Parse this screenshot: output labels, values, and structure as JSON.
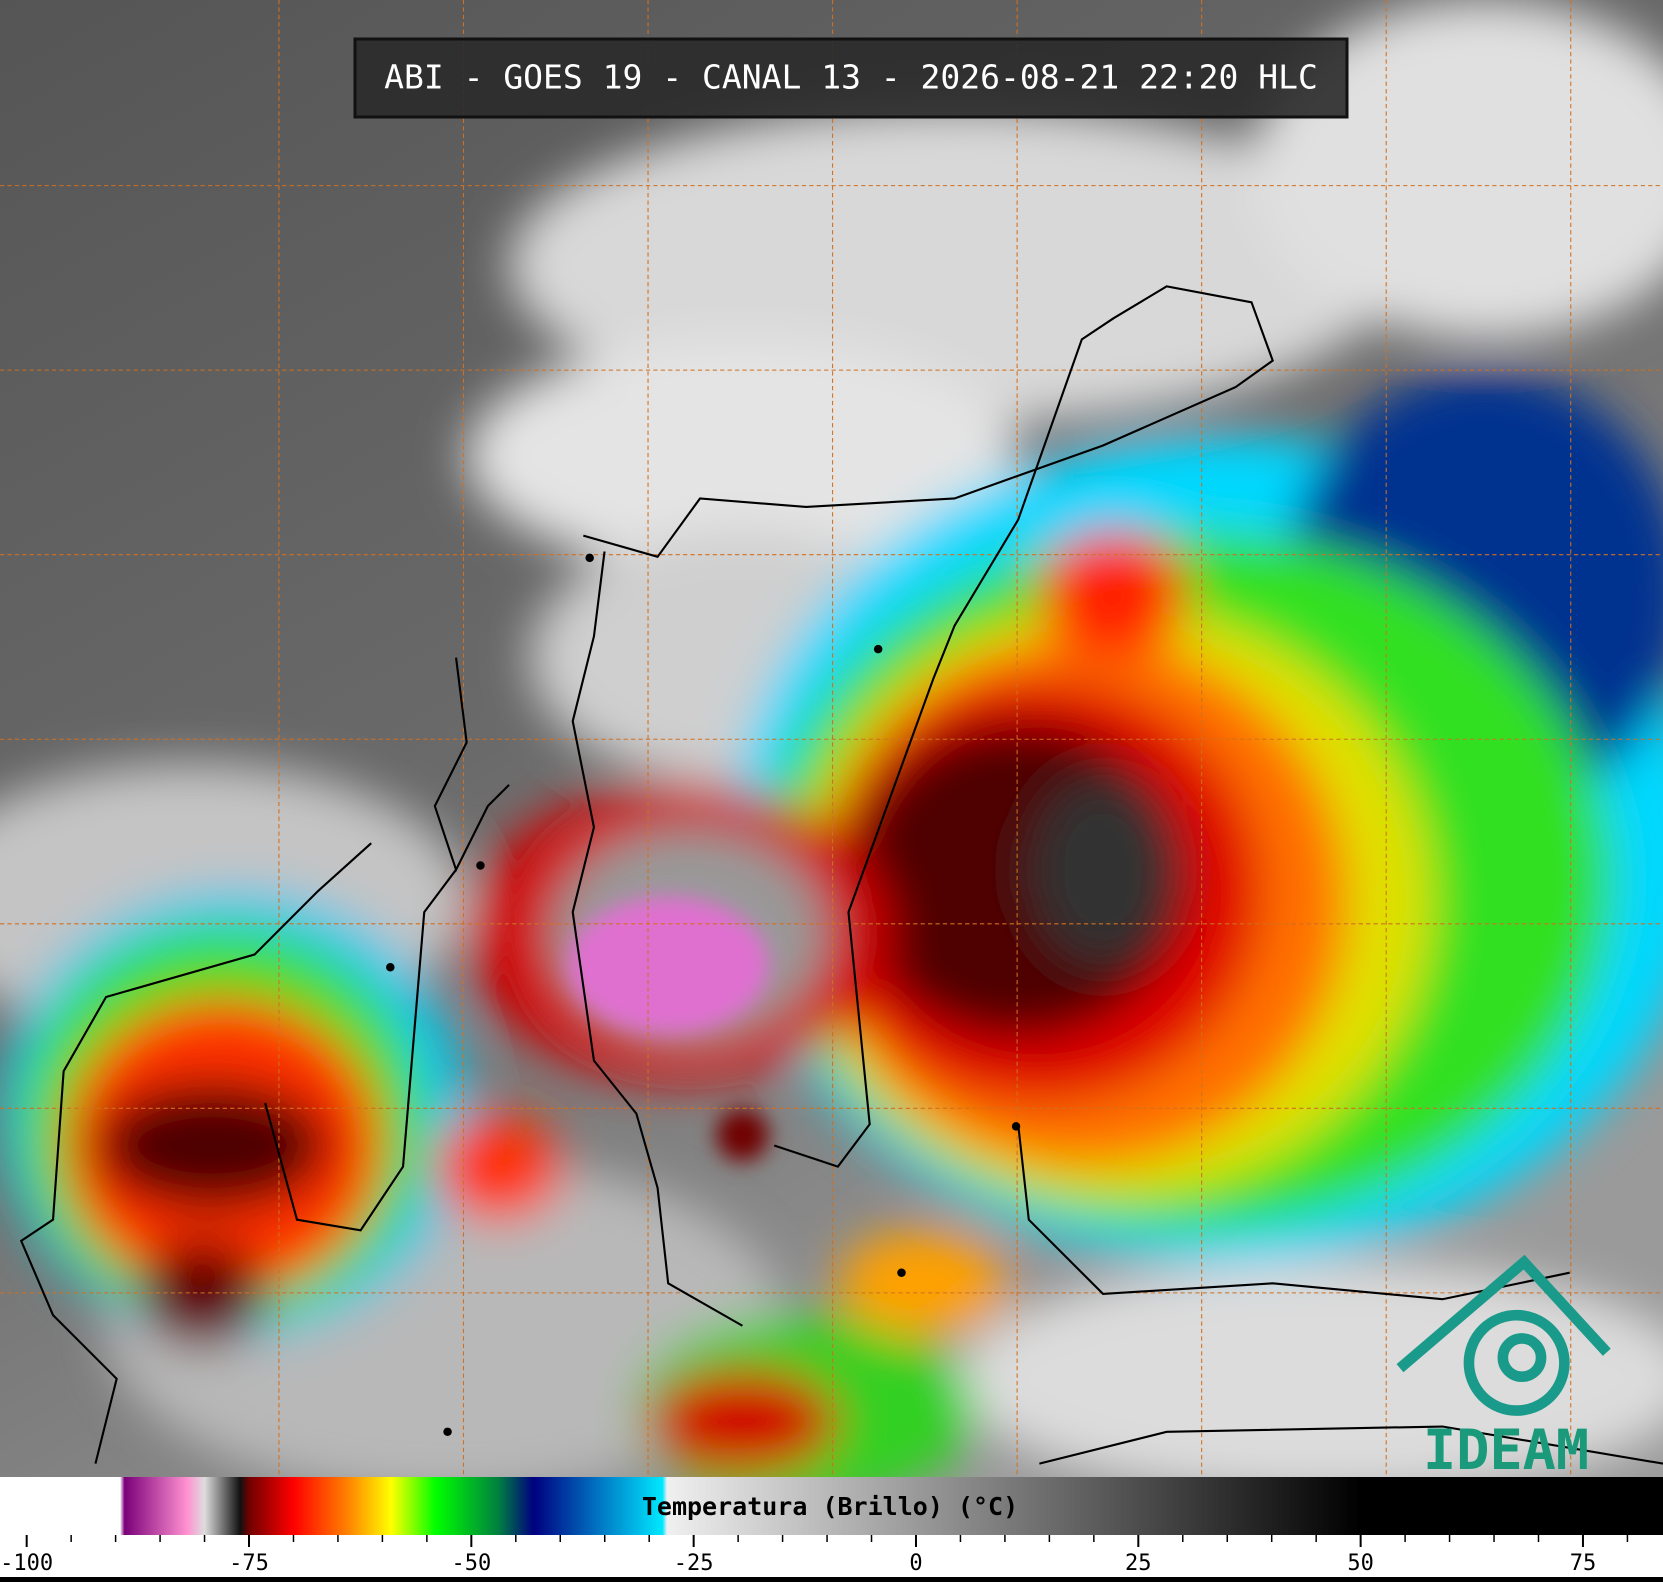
{
  "header": {
    "title": "ABI - GOES 19 - CANAL 13 - 2026-08-21 22:20 HLC"
  },
  "logo": {
    "text": "IDEAM"
  },
  "colorbar": {
    "label": "Temperatura (Brillo) (°C)",
    "lim": [
      -103,
      84
    ],
    "ticks": [
      -100,
      -75,
      -50,
      -25,
      0,
      25,
      50,
      75
    ],
    "minor_ticks": [
      -95,
      -90,
      -85,
      -80,
      -70,
      -65,
      -60,
      -55,
      -45,
      -40,
      -35,
      -30,
      -20,
      -15,
      -10,
      -5,
      5,
      10,
      15,
      20,
      30,
      35,
      40,
      45,
      55,
      60,
      65,
      70,
      80
    ],
    "stops": [
      {
        "value": -89.5,
        "color": "#ffffff"
      },
      {
        "value": -89,
        "color": "#7a007a"
      },
      {
        "value": -82,
        "color": "#ff90d0"
      },
      {
        "value": -80,
        "color": "#dddddd"
      },
      {
        "value": -76,
        "color": "#111111"
      },
      {
        "value": -75,
        "color": "#700000"
      },
      {
        "value": -70,
        "color": "#ff0000"
      },
      {
        "value": -64,
        "color": "#ff8000"
      },
      {
        "value": -59,
        "color": "#ffff00"
      },
      {
        "value": -54,
        "color": "#00ff00"
      },
      {
        "value": -47,
        "color": "#008040"
      },
      {
        "value": -43,
        "color": "#000080"
      },
      {
        "value": -36,
        "color": "#0070c0"
      },
      {
        "value": -28.5,
        "color": "#00e8ff"
      },
      {
        "value": -28,
        "color": "#f0f0f0"
      },
      {
        "value": 50,
        "color": "#000000"
      }
    ]
  }
}
